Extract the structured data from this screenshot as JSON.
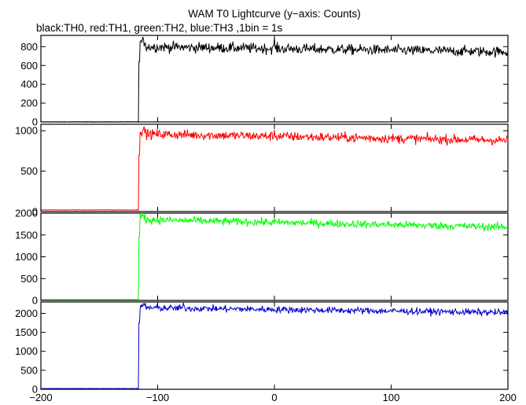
{
  "chart_data": {
    "type": "line",
    "title": "WAM T0 Lightcurve (y−axis: Counts)",
    "subtitle": "black:TH0, red:TH1, green:TH2, blue:TH3 ,1bin = 1s",
    "xlim": [
      -200,
      200
    ],
    "xticks": [
      -200,
      -100,
      0,
      100,
      200
    ],
    "grid": false,
    "panels": [
      {
        "color": "#000000",
        "ylim": [
          0,
          920
        ],
        "yticks": [
          0,
          200,
          400,
          600,
          800
        ],
        "baseline": 0,
        "onset_x": -116,
        "onset_value": 640,
        "peak_value": 850,
        "level_start": 800,
        "level_end": 745,
        "noise": 28,
        "spike_x": 0,
        "spike_value": 900
      },
      {
        "color": "#ff0000",
        "ylim": [
          0,
          1080
        ],
        "yticks": [
          0,
          500,
          1000
        ],
        "baseline": 20,
        "onset_x": -116,
        "onset_value": 700,
        "peak_value": 1000,
        "level_start": 960,
        "level_end": 880,
        "noise": 30,
        "spike_x": 0,
        "spike_value": 1010
      },
      {
        "color": "#00ff00",
        "ylim": [
          0,
          2000
        ],
        "yticks": [
          0,
          500,
          1000,
          1500,
          2000
        ],
        "baseline": 20,
        "onset_x": -116,
        "onset_value": 1450,
        "peak_value": 1920,
        "level_start": 1850,
        "level_end": 1680,
        "noise": 45,
        "spike_x": 0,
        "spike_value": 1900
      },
      {
        "color": "#0000cc",
        "ylim": [
          0,
          2300
        ],
        "yticks": [
          0,
          500,
          1000,
          1500,
          2000
        ],
        "baseline": 20,
        "onset_x": -116,
        "onset_value": 1750,
        "peak_value": 2200,
        "level_start": 2150,
        "level_end": 2020,
        "noise": 45,
        "spike_x": -78,
        "spike_value": 2280
      }
    ]
  }
}
